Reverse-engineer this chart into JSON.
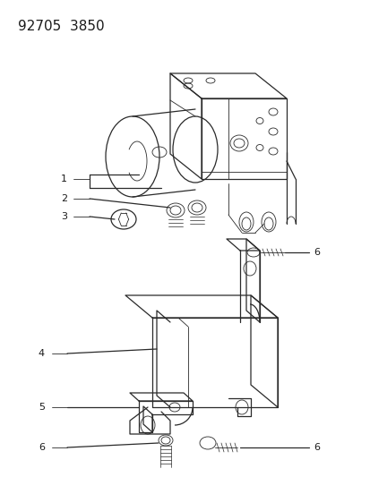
{
  "title": "92705  3850",
  "bg_color": "#ffffff",
  "line_color": "#2a2a2a",
  "text_color": "#1a1a1a",
  "title_fontsize": 11,
  "callout_fontsize": 8
}
